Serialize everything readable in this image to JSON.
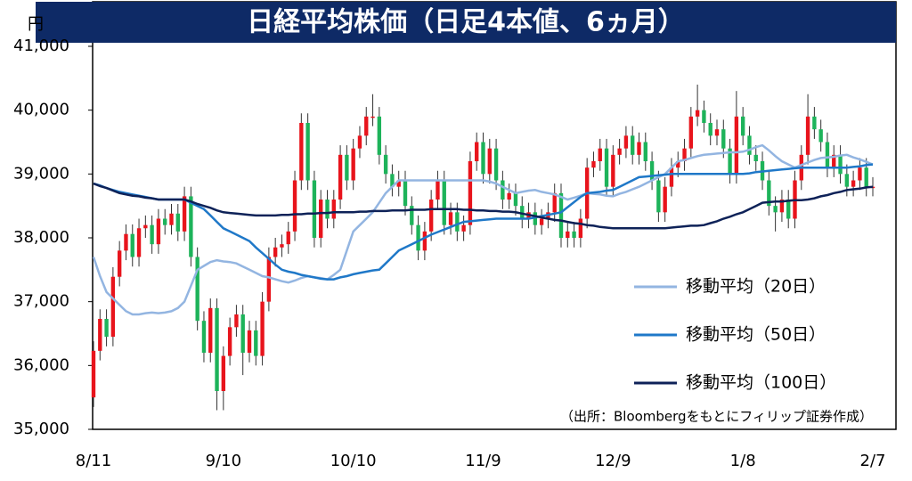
{
  "chart_data": {
    "type": "candlestick",
    "title": "日経平均株価（日足4本値、6ヵ月）",
    "ylabel": "円",
    "note": "（出所：Bloombergをもとにフィリップ証券作成）",
    "up_color": "#e8141c",
    "down_color": "#1db35a",
    "ylim": [
      35000,
      41000
    ],
    "yticks": [
      {
        "value": 35000,
        "label": "35,000"
      },
      {
        "value": 36000,
        "label": "36,000"
      },
      {
        "value": 37000,
        "label": "37,000"
      },
      {
        "value": 38000,
        "label": "38,000"
      },
      {
        "value": 39000,
        "label": "39,000"
      },
      {
        "value": 40000,
        "label": "40,000"
      },
      {
        "value": 41000,
        "label": "41,000"
      }
    ],
    "categories": [
      "8/11",
      null,
      null,
      null,
      null,
      null,
      null,
      null,
      null,
      null,
      null,
      null,
      null,
      null,
      null,
      null,
      null,
      null,
      null,
      null,
      "9/10",
      null,
      null,
      null,
      null,
      null,
      null,
      null,
      null,
      null,
      null,
      null,
      null,
      null,
      null,
      null,
      null,
      null,
      null,
      null,
      "10/10",
      null,
      null,
      null,
      null,
      null,
      null,
      null,
      null,
      null,
      null,
      null,
      null,
      null,
      null,
      null,
      null,
      null,
      null,
      null,
      "11/9",
      null,
      null,
      null,
      null,
      null,
      null,
      null,
      null,
      null,
      null,
      null,
      null,
      null,
      null,
      null,
      null,
      null,
      null,
      null,
      "12/9",
      null,
      null,
      null,
      null,
      null,
      null,
      null,
      null,
      null,
      null,
      null,
      null,
      null,
      null,
      null,
      null,
      null,
      null,
      null,
      "1/8",
      null,
      null,
      null,
      null,
      null,
      null,
      null,
      null,
      null,
      null,
      null,
      null,
      null,
      null,
      null,
      null,
      null,
      null,
      null,
      "2/7"
    ],
    "open": [
      35500,
      36230,
      36730,
      36450,
      37390,
      37800,
      38060,
      37700,
      38150,
      38200,
      37900,
      38300,
      38200,
      38380,
      38100,
      38650,
      37700,
      36700,
      36200,
      36900,
      35600,
      36150,
      36600,
      36800,
      36200,
      36550,
      36150,
      37000,
      37700,
      37850,
      37900,
      38100,
      38900,
      39800,
      38900,
      38000,
      38600,
      38300,
      38600,
      39300,
      38900,
      39400,
      39600,
      39900,
      39900,
      39300,
      39000,
      38800,
      38900,
      38500,
      38200,
      37800,
      38100,
      38600,
      38900,
      38200,
      38400,
      38100,
      38200,
      39200,
      39500,
      39000,
      39400,
      38900,
      38600,
      38700,
      38500,
      38300,
      38400,
      38200,
      38300,
      38400,
      38700,
      38000,
      38100,
      38000,
      38300,
      39100,
      39200,
      39400,
      38800,
      39300,
      39400,
      39600,
      39300,
      39500,
      39200,
      38900,
      38400,
      38800,
      39100,
      39200,
      39400,
      39900,
      40000,
      39800,
      39600,
      39700,
      39400,
      39000,
      39900,
      39600,
      39300,
      39200,
      38900,
      38500,
      38400,
      38600,
      38300,
      38900,
      39300,
      39900,
      39700,
      39500,
      39100,
      39300,
      39000,
      38800,
      38900,
      39100,
      38800
    ],
    "high": [
      36380,
      36880,
      36880,
      37540,
      37950,
      38210,
      38210,
      38300,
      38350,
      38350,
      38450,
      38450,
      38530,
      38530,
      38800,
      38800,
      37850,
      36850,
      37050,
      37050,
      36300,
      36750,
      36950,
      36950,
      36700,
      36700,
      37150,
      37850,
      38000,
      38050,
      38250,
      39050,
      39950,
      39950,
      39050,
      38750,
      38750,
      38750,
      39450,
      39450,
      39550,
      39750,
      40050,
      40250,
      40050,
      39450,
      39150,
      39050,
      39050,
      38650,
      38350,
      38250,
      38750,
      39050,
      39050,
      38550,
      38550,
      38350,
      39350,
      39650,
      39650,
      39550,
      39550,
      39050,
      38850,
      38850,
      38650,
      38550,
      38550,
      38450,
      38550,
      38850,
      38850,
      38250,
      38250,
      38450,
      39250,
      39350,
      39550,
      39550,
      39450,
      39550,
      39750,
      39750,
      39650,
      39650,
      39350,
      39050,
      38950,
      39250,
      39350,
      39550,
      40050,
      40400,
      40150,
      39950,
      39850,
      39850,
      39550,
      40300,
      40050,
      39750,
      39450,
      39350,
      39050,
      38650,
      38750,
      38750,
      39050,
      39450,
      40250,
      40050,
      39850,
      39650,
      39450,
      39450,
      39150,
      39050,
      39250,
      39250,
      38950
    ],
    "low": [
      35350,
      36080,
      36300,
      36300,
      37240,
      37650,
      37550,
      37550,
      38000,
      37750,
      37750,
      38050,
      38050,
      37950,
      37950,
      37550,
      36550,
      36050,
      36050,
      35300,
      35300,
      36000,
      36450,
      35850,
      36050,
      36000,
      36000,
      36850,
      37550,
      37700,
      37750,
      37950,
      38750,
      38750,
      37850,
      37850,
      38150,
      38150,
      38450,
      38750,
      38750,
      39250,
      39450,
      39750,
      39150,
      38850,
      38650,
      38650,
      38350,
      38050,
      37650,
      37650,
      37950,
      38450,
      38050,
      38050,
      37950,
      37950,
      38050,
      39050,
      38850,
      38850,
      38750,
      38450,
      38450,
      38350,
      38150,
      38150,
      38050,
      38050,
      38150,
      38250,
      37850,
      37850,
      37850,
      37850,
      38150,
      38950,
      39050,
      38650,
      38650,
      39150,
      39250,
      39150,
      39150,
      39050,
      38750,
      38250,
      38250,
      38650,
      38950,
      39050,
      39250,
      39750,
      39650,
      39450,
      39450,
      39250,
      38850,
      38850,
      39450,
      39150,
      39050,
      38750,
      38350,
      38100,
      38250,
      38150,
      38150,
      38750,
      39150,
      39550,
      39350,
      38950,
      38950,
      38850,
      38650,
      38650,
      38750,
      38650,
      38650
    ],
    "close": [
      36230,
      36730,
      36450,
      37390,
      37800,
      38060,
      37700,
      38150,
      38200,
      37900,
      38300,
      38200,
      38380,
      38100,
      38650,
      37700,
      36700,
      36200,
      36900,
      35600,
      36150,
      36600,
      36800,
      36200,
      36550,
      36150,
      37000,
      37700,
      37850,
      37900,
      38100,
      38900,
      39800,
      38900,
      38000,
      38600,
      38300,
      38600,
      39300,
      38900,
      39400,
      39600,
      39900,
      39900,
      39300,
      39000,
      38800,
      38900,
      38500,
      38200,
      37800,
      38100,
      38600,
      38900,
      38200,
      38400,
      38100,
      38200,
      39200,
      39500,
      39000,
      39400,
      38900,
      38600,
      38700,
      38500,
      38300,
      38400,
      38200,
      38300,
      38400,
      38700,
      38000,
      38100,
      38000,
      38300,
      39100,
      39200,
      39400,
      38800,
      39300,
      39400,
      39600,
      39300,
      39500,
      39200,
      38900,
      38400,
      38800,
      39100,
      39200,
      39400,
      39900,
      40000,
      39800,
      39600,
      39700,
      39400,
      39000,
      39900,
      39600,
      39300,
      39200,
      38900,
      38500,
      38400,
      38600,
      38300,
      38900,
      39300,
      39900,
      39700,
      39500,
      39100,
      39300,
      39000,
      38800,
      38900,
      39100,
      38800,
      38800
    ],
    "series": [
      {
        "name": "移動平均（20日）",
        "color": "#93b5e1",
        "values": [
          37700,
          37400,
          37150,
          37050,
          36950,
          36850,
          36800,
          36800,
          36820,
          36830,
          36820,
          36830,
          36850,
          36900,
          37000,
          37250,
          37500,
          37560,
          37620,
          37650,
          37630,
          37620,
          37600,
          37550,
          37500,
          37450,
          37400,
          37380,
          37350,
          37320,
          37300,
          37330,
          37370,
          37400,
          37380,
          37370,
          37350,
          37420,
          37500,
          37800,
          38100,
          38200,
          38300,
          38400,
          38550,
          38700,
          38800,
          38900,
          38900,
          38900,
          38900,
          38900,
          38900,
          38900,
          38900,
          38900,
          38900,
          38900,
          38900,
          38900,
          38900,
          38880,
          38850,
          38800,
          38750,
          38700,
          38720,
          38740,
          38750,
          38720,
          38700,
          38680,
          38640,
          38600,
          38630,
          38660,
          38700,
          38690,
          38680,
          38660,
          38650,
          38690,
          38720,
          38760,
          38800,
          38850,
          38900,
          38950,
          39000,
          39100,
          39200,
          39220,
          39250,
          39280,
          39300,
          39310,
          39320,
          39330,
          39340,
          39340,
          39350,
          39380,
          39420,
          39450,
          39370,
          39280,
          39200,
          39150,
          39100,
          39140,
          39180,
          39220,
          39250,
          39260,
          39270,
          39290,
          39300,
          39260,
          39230,
          39190,
          39150
        ]
      },
      {
        "name": "移動平均（50日）",
        "color": "#1f78c8",
        "values": [
          38850,
          38820,
          38780,
          38750,
          38720,
          38700,
          38680,
          38660,
          38640,
          38620,
          38600,
          38600,
          38600,
          38600,
          38600,
          38550,
          38500,
          38450,
          38350,
          38250,
          38150,
          38100,
          38050,
          38000,
          37950,
          37850,
          37760,
          37670,
          37580,
          37500,
          37470,
          37450,
          37420,
          37400,
          37380,
          37360,
          37350,
          37350,
          37380,
          37400,
          37430,
          37450,
          37470,
          37490,
          37500,
          37600,
          37700,
          37800,
          37850,
          37900,
          37950,
          38000,
          38050,
          38090,
          38130,
          38170,
          38210,
          38250,
          38260,
          38270,
          38280,
          38290,
          38300,
          38300,
          38300,
          38300,
          38300,
          38300,
          38320,
          38340,
          38360,
          38380,
          38400,
          38480,
          38560,
          38640,
          38700,
          38710,
          38720,
          38740,
          38750,
          38800,
          38850,
          38900,
          38950,
          38960,
          38970,
          38980,
          38990,
          39000,
          39000,
          39000,
          39000,
          39000,
          39000,
          39000,
          39000,
          39000,
          39000,
          39000,
          39000,
          39010,
          39030,
          39040,
          39050,
          39060,
          39070,
          39080,
          39090,
          39100,
          39100,
          39100,
          39100,
          39100,
          39100,
          39100,
          39100,
          39110,
          39120,
          39140,
          39150
        ]
      },
      {
        "name": "移動平均（100日）",
        "color": "#0e2258",
        "values": [
          38850,
          38810,
          38780,
          38740,
          38700,
          38680,
          38660,
          38650,
          38630,
          38620,
          38600,
          38600,
          38600,
          38600,
          38600,
          38570,
          38530,
          38500,
          38470,
          38430,
          38400,
          38390,
          38380,
          38370,
          38360,
          38350,
          38350,
          38350,
          38350,
          38360,
          38360,
          38370,
          38370,
          38380,
          38380,
          38390,
          38390,
          38400,
          38400,
          38400,
          38400,
          38410,
          38410,
          38420,
          38420,
          38420,
          38430,
          38430,
          38430,
          38440,
          38440,
          38440,
          38450,
          38450,
          38450,
          38450,
          38450,
          38440,
          38440,
          38430,
          38430,
          38420,
          38420,
          38410,
          38410,
          38400,
          38380,
          38360,
          38340,
          38320,
          38300,
          38280,
          38270,
          38250,
          38230,
          38220,
          38200,
          38190,
          38170,
          38160,
          38150,
          38150,
          38150,
          38150,
          38150,
          38150,
          38150,
          38150,
          38150,
          38160,
          38170,
          38180,
          38190,
          38190,
          38200,
          38230,
          38260,
          38300,
          38330,
          38370,
          38400,
          38450,
          38500,
          38550,
          38560,
          38570,
          38570,
          38580,
          38590,
          38590,
          38600,
          38620,
          38650,
          38670,
          38700,
          38720,
          38750,
          38760,
          38770,
          38790,
          38800
        ]
      }
    ]
  }
}
